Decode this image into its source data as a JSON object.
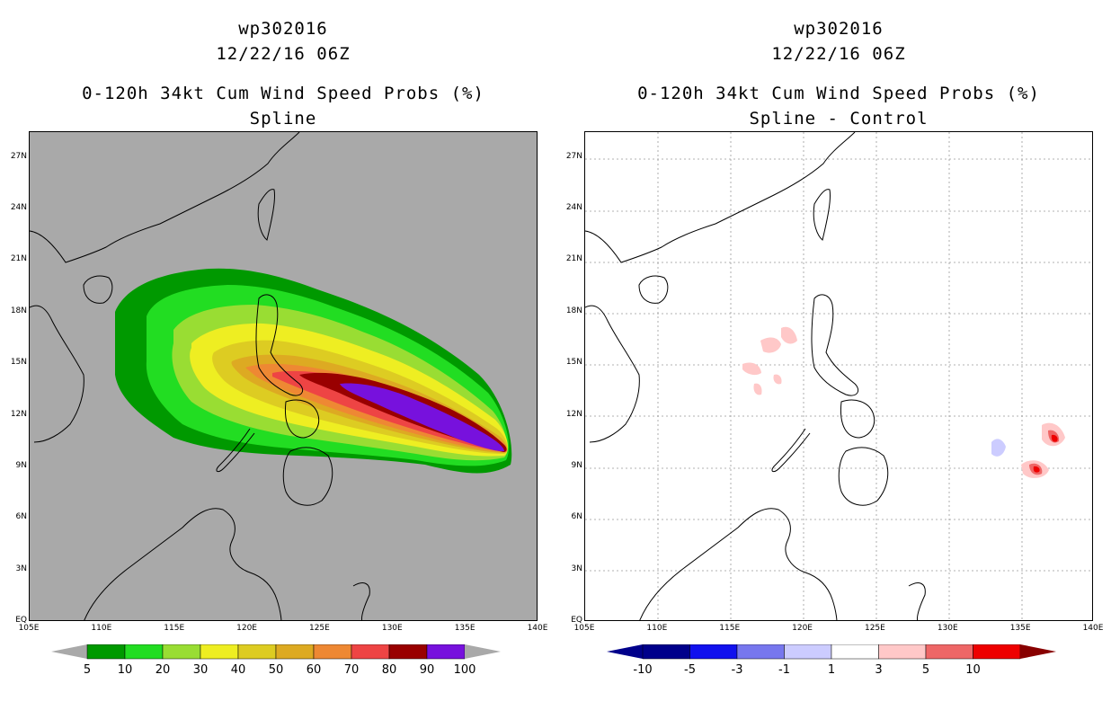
{
  "left_panel": {
    "title_line1": "wp302016",
    "title_line2": "12/22/16 06Z",
    "title_line3": "0-120h 34kt Cum Wind Speed Probs (%)",
    "subtitle": "Spline",
    "background_color": "#a9a9a9",
    "colorbar": {
      "labels": [
        "5",
        "10",
        "20",
        "30",
        "40",
        "50",
        "60",
        "70",
        "80",
        "90",
        "100"
      ],
      "colors": [
        "#009900",
        "#22dd22",
        "#99dd33",
        "#eeee22",
        "#ddcc22",
        "#ddaa22",
        "#ee8833",
        "#ee4444",
        "#990000",
        "#7711dd"
      ]
    }
  },
  "right_panel": {
    "title_line1": "wp302016",
    "title_line2": "12/22/16 06Z",
    "title_line3": "0-120h 34kt Cum Wind Speed Probs (%)",
    "subtitle": "Spline - Control",
    "background_color": "#ffffff",
    "colorbar": {
      "labels": [
        "-10",
        "-5",
        "-3",
        "-1",
        "1",
        "3",
        "5",
        "10"
      ],
      "colors": [
        "#00008b",
        "#1111ee",
        "#7777ee",
        "#ccccff",
        "#ffffff",
        "#ffc8c8",
        "#ee6666",
        "#ee0000",
        "#880000"
      ]
    }
  },
  "axes": {
    "x_ticks": [
      "105E",
      "110E",
      "115E",
      "120E",
      "125E",
      "130E",
      "135E",
      "140E"
    ],
    "y_ticks": [
      "EQ",
      "3N",
      "6N",
      "9N",
      "12N",
      "15N",
      "18N",
      "21N",
      "24N",
      "27N"
    ]
  }
}
